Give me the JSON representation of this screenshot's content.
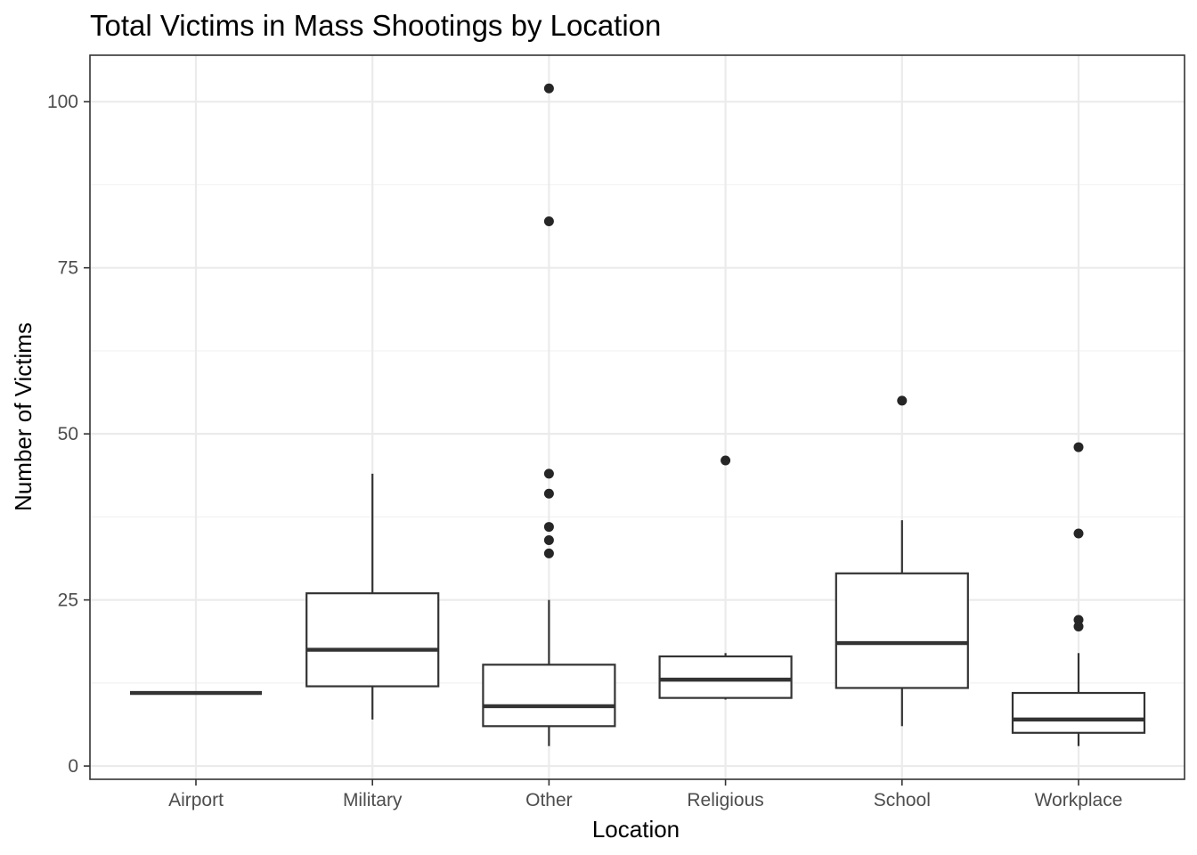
{
  "chart_data": {
    "type": "boxplot",
    "title": "Total Victims in Mass Shootings by Location",
    "xlabel": "Location",
    "ylabel": "Number of Victims",
    "ylim": [
      -2,
      107
    ],
    "yticks": [
      0,
      25,
      50,
      75,
      100
    ],
    "categories": [
      "Airport",
      "Military",
      "Other",
      "Religious",
      "School",
      "Workplace"
    ],
    "boxes": [
      {
        "category": "Airport",
        "whisker_low": 11,
        "q1": 11,
        "median": 11,
        "q3": 11,
        "whisker_high": 11,
        "outliers": []
      },
      {
        "category": "Military",
        "whisker_low": 7,
        "q1": 12,
        "median": 17.5,
        "q3": 26,
        "whisker_high": 44,
        "outliers": []
      },
      {
        "category": "Other",
        "whisker_low": 3,
        "q1": 6,
        "median": 9,
        "q3": 15.25,
        "whisker_high": 25,
        "outliers": [
          32,
          34,
          36,
          41,
          44,
          82,
          102
        ]
      },
      {
        "category": "Religious",
        "whisker_low": 10,
        "q1": 10.25,
        "median": 13,
        "q3": 16.5,
        "whisker_high": 17,
        "outliers": [
          46
        ]
      },
      {
        "category": "School",
        "whisker_low": 6,
        "q1": 11.75,
        "median": 18.5,
        "q3": 29,
        "whisker_high": 37,
        "outliers": [
          55
        ]
      },
      {
        "category": "Workplace",
        "whisker_low": 3,
        "q1": 5,
        "median": 7,
        "q3": 11,
        "whisker_high": 17,
        "outliers": [
          21,
          22,
          35,
          48
        ]
      }
    ],
    "grid": true,
    "theme": "bw",
    "colors": {
      "box_line": "#333333",
      "point": "#262626",
      "grid_major": "#ebebeb",
      "grid_minor": "#f2f2f2",
      "panel_border": "#333333"
    }
  }
}
